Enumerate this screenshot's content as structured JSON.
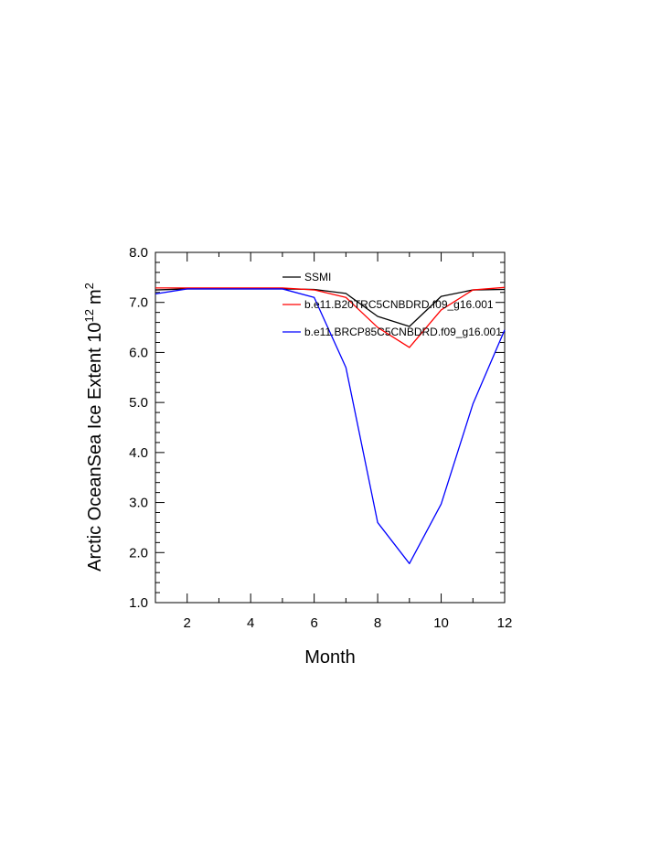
{
  "chart_data": {
    "type": "line",
    "title": "",
    "xlabel": "Month",
    "ylabel": "Arctic OceanSea Ice Extent 10",
    "ylabel_superscript": "12",
    "ylabel_unit": "m",
    "ylabel_unit_superscript": "2",
    "xlim": [
      1,
      12
    ],
    "ylim": [
      1.0,
      8.0
    ],
    "xticks": [
      2,
      4,
      6,
      8,
      10,
      12
    ],
    "yticks": [
      1.0,
      2.0,
      3.0,
      4.0,
      5.0,
      6.0,
      7.0,
      8.0
    ],
    "ytick_labels": [
      "1.0",
      "2.0",
      "3.0",
      "4.0",
      "5.0",
      "6.0",
      "7.0",
      "8.0"
    ],
    "grid": false,
    "legend_position": "top-right",
    "x": [
      1,
      2,
      3,
      4,
      5,
      6,
      7,
      8,
      9,
      10,
      11,
      12
    ],
    "series": [
      {
        "name": "SSMI",
        "color": "#000000",
        "values": [
          7.25,
          7.27,
          7.27,
          7.27,
          7.27,
          7.26,
          7.18,
          6.72,
          6.52,
          7.12,
          7.25,
          7.26
        ]
      },
      {
        "name": "b.e11.B20TRC5CNBDRD.f09_g16.001",
        "color": "#ff0000",
        "values": [
          7.29,
          7.29,
          7.29,
          7.29,
          7.29,
          7.25,
          7.1,
          6.5,
          6.1,
          6.85,
          7.25,
          7.3
        ]
      },
      {
        "name": "b.e11.BRCP85C5CNBDRD.f09_g16.001",
        "color": "#0000ff",
        "values": [
          7.17,
          7.27,
          7.27,
          7.27,
          7.27,
          7.1,
          5.7,
          2.6,
          1.78,
          2.97,
          4.97,
          6.45
        ]
      }
    ]
  }
}
